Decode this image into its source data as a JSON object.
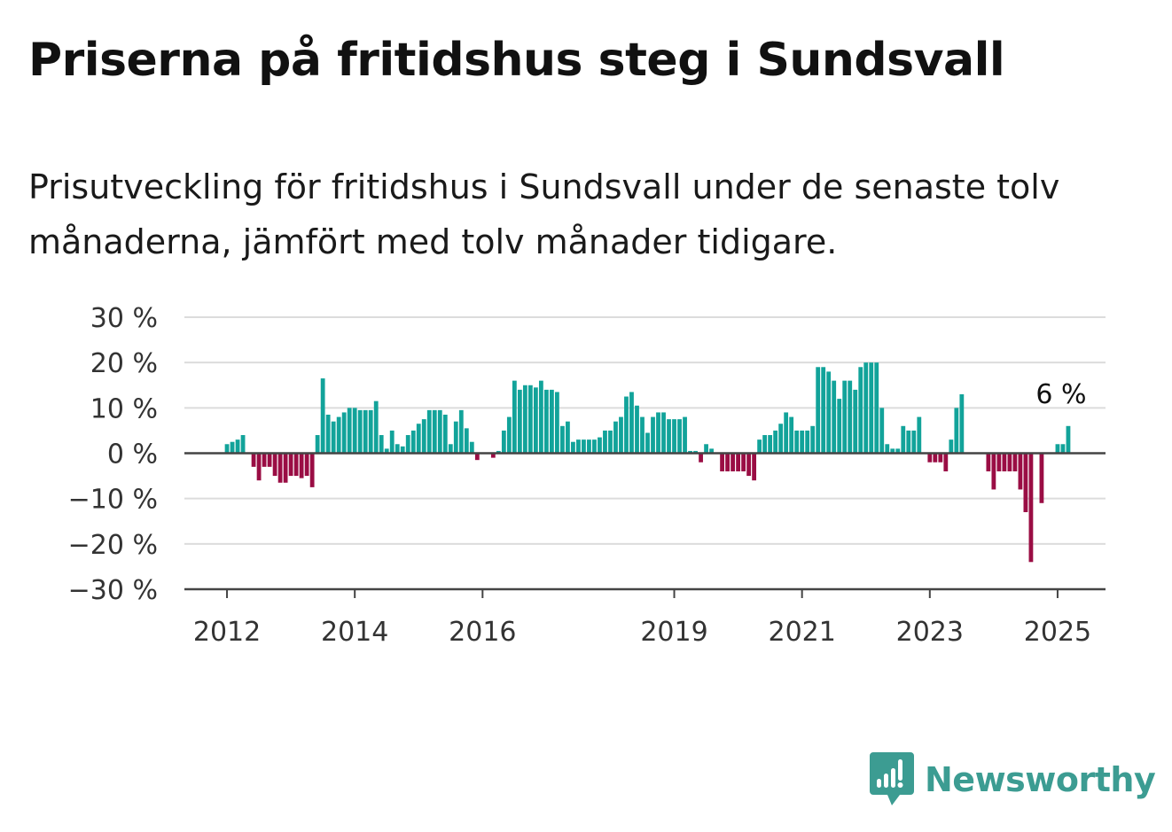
{
  "title": "Priserna på fritidshus steg i Sundsvall",
  "subtitle": "Prisutveckling för fritidshus i Sundsvall under de senaste tolv månaderna, jämfört med tolv månader tidigare.",
  "brand": {
    "name": "Newsworthy",
    "color": "#3c9c92",
    "icon": "newsworthy-logo-icon"
  },
  "chart_data": {
    "type": "bar",
    "colors": {
      "positive": "#12a39a",
      "negative": "#9a0d44"
    },
    "ylim": [
      -30,
      30
    ],
    "y_ticks": [
      30,
      20,
      10,
      0,
      -10,
      -20,
      -30
    ],
    "y_tick_labels": [
      "30 %",
      "20 %",
      "10 %",
      "0 %",
      "−10 %",
      "−20 %",
      "−30 %"
    ],
    "x_tick_labels": [
      "2012",
      "2014",
      "2016",
      "2019",
      "2021",
      "2023",
      "2025"
    ],
    "x_tick_years": [
      2012,
      2014,
      2016,
      2019,
      2021,
      2023,
      2025
    ],
    "x_range": [
      "2011-05",
      "2025-10"
    ],
    "grid": true,
    "annotation": {
      "label": "6 %",
      "month": "2025-02",
      "value": 6
    },
    "series": [
      {
        "start": "2012-01",
        "values": [
          2,
          2.5,
          3,
          4,
          0,
          -3,
          -6,
          -3,
          -3,
          -5,
          -6.5,
          -6.5,
          -5,
          -5,
          -5.5,
          -5,
          -7.5,
          4,
          16.5,
          8.5,
          7,
          8,
          9,
          10,
          10,
          9.5,
          9.5,
          9.5,
          11.5,
          4,
          1,
          5,
          2,
          1.5,
          4,
          5,
          6.5,
          7.5,
          9.5,
          9.5,
          9.5,
          8.5,
          2,
          7,
          9.5,
          5.5,
          2.5,
          -1.5,
          0,
          0,
          -1,
          0.5,
          5,
          8,
          16,
          14,
          15,
          15,
          14.5,
          16,
          14,
          14,
          13.5,
          6,
          7,
          2.5,
          3,
          3,
          3,
          3,
          3.5,
          5,
          5,
          7,
          8,
          12.5,
          13.5,
          10.5,
          8,
          4.5,
          8,
          9,
          9,
          7.5,
          7.5,
          7.5,
          8,
          0.5,
          0.5,
          -2,
          2,
          1,
          0,
          -4,
          -4,
          -4,
          -4,
          -4,
          -5,
          -6,
          3,
          4,
          4,
          5,
          6.5,
          9,
          8,
          5,
          5,
          5,
          6,
          19,
          19,
          18,
          16,
          12,
          16,
          16,
          14,
          19,
          20,
          20,
          20,
          10,
          2,
          1,
          1,
          6,
          5,
          5,
          8,
          0,
          -2,
          -2,
          -2,
          -4,
          3,
          10,
          13,
          0,
          0,
          0,
          0,
          -4,
          -8,
          -4,
          -4,
          -4,
          -4,
          -8,
          -13,
          -24,
          0,
          -11,
          0,
          0,
          2,
          2,
          6
        ]
      }
    ]
  }
}
